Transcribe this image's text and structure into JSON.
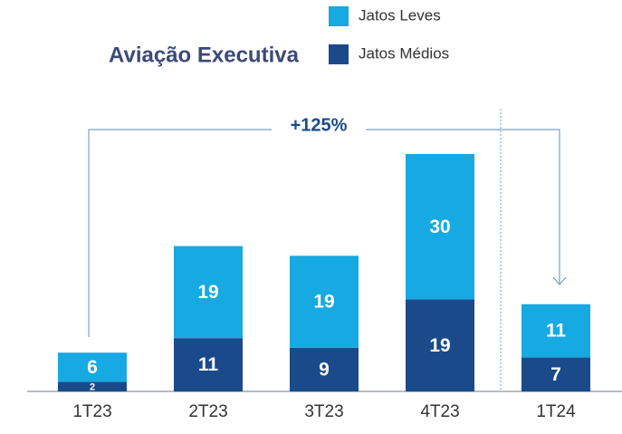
{
  "chart_data": {
    "type": "stacked_bar",
    "title": "Aviação Executiva",
    "categories": [
      "1T23",
      "2T23",
      "3T23",
      "4T23",
      "1T24"
    ],
    "series": [
      {
        "name": "Jatos Médios",
        "color": "#1b4a8a",
        "values": [
          2,
          11,
          9,
          19,
          7
        ]
      },
      {
        "name": "Jatos Leves",
        "color": "#17a9e1",
        "values": [
          6,
          19,
          19,
          30,
          11
        ]
      }
    ],
    "annotation": "+125%"
  }
}
